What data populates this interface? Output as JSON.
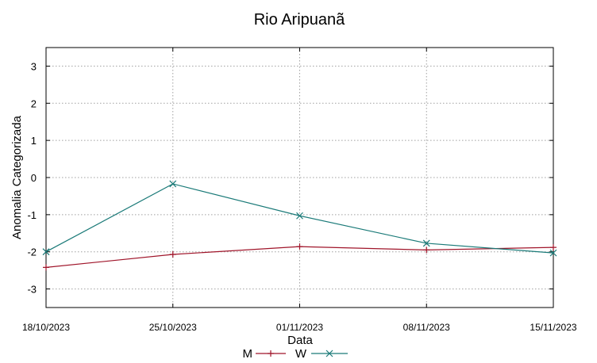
{
  "chart_data": {
    "type": "line",
    "title": "Rio Aripuanã",
    "xlabel": "Data",
    "ylabel": "Anomalia Categorizada",
    "x": [
      "18/10/2023",
      "25/10/2023",
      "01/11/2023",
      "08/11/2023",
      "15/11/2023"
    ],
    "ylim": [
      -3.5,
      3.5
    ],
    "yticks": [
      -3,
      -2,
      -1,
      0,
      1,
      2,
      3
    ],
    "grid": true,
    "legend_position": "bottom",
    "series": [
      {
        "name": "M",
        "color": "#a0152a",
        "marker": "plus",
        "values": [
          -2.42,
          -2.07,
          -1.86,
          -1.95,
          -1.88
        ]
      },
      {
        "name": "W",
        "color": "#1a7a78",
        "marker": "x",
        "values": [
          -2.0,
          -0.17,
          -1.03,
          -1.77,
          -2.03
        ]
      }
    ]
  }
}
